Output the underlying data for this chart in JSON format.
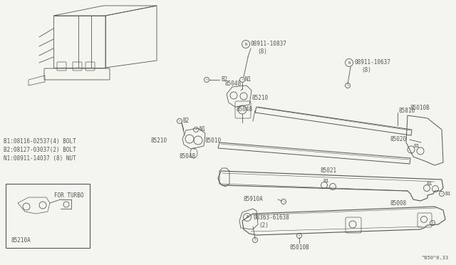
{
  "background_color": "#f5f5f0",
  "line_color": "#555555",
  "diagram_code": "^850^0.33",
  "legend": [
    "B1:08116-02537(4) BOLT",
    "B2:08127-03037(2) BOLT",
    "N1:08911-14037 (8) NUT"
  ]
}
